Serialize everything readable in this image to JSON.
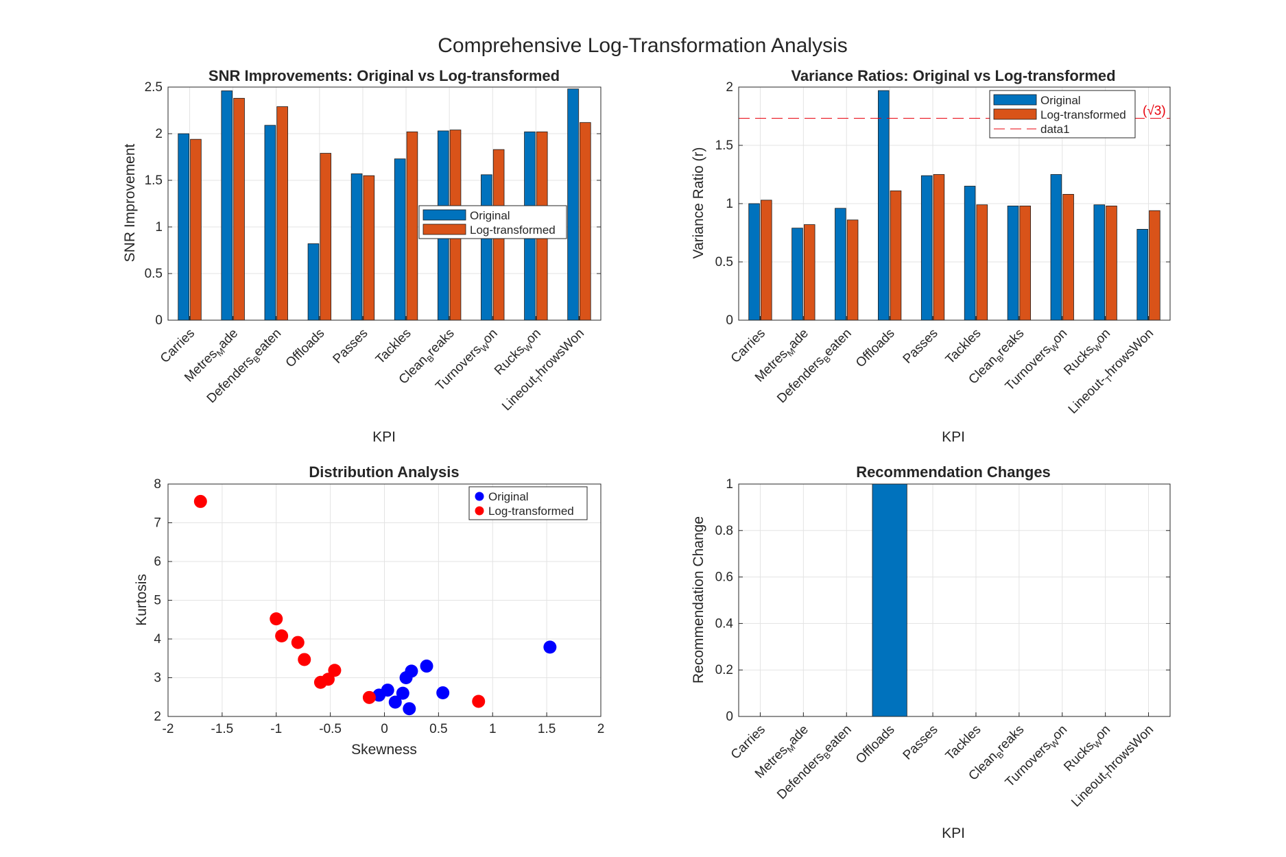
{
  "figure": {
    "title": "Comprehensive Log-Transformation Analysis",
    "colors": {
      "original": "#0072BD",
      "log": "#D95319",
      "scatter_original": "#0000FF",
      "scatter_log": "#FF0000",
      "refline": "#E8000B"
    }
  },
  "chart_data": [
    {
      "type": "bar",
      "title": "SNR Improvements: Original vs Log-transformed",
      "xlabel": "KPI",
      "ylabel": "SNR Improvement",
      "ylim": [
        0,
        2.5
      ],
      "yticks": [
        "0",
        "0.5",
        "1",
        "1.5",
        "2",
        "2.5"
      ],
      "grid": true,
      "legend": "center-right",
      "categories": [
        {
          "base": "Carries",
          "sub": "",
          "rest": ""
        },
        {
          "base": "Metres",
          "sub": "M",
          "rest": "ade"
        },
        {
          "base": "Defenders",
          "sub": "B",
          "rest": "eaten"
        },
        {
          "base": "Offloads",
          "sub": "",
          "rest": ""
        },
        {
          "base": "Passes",
          "sub": "",
          "rest": ""
        },
        {
          "base": "Tackles",
          "sub": "",
          "rest": ""
        },
        {
          "base": "Clean",
          "sub": "B",
          "rest": "reaks"
        },
        {
          "base": "Turnovers",
          "sub": "W",
          "rest": "on"
        },
        {
          "base": "Rucks",
          "sub": "W",
          "rest": "on"
        },
        {
          "base": "Lineout",
          "sub": "T",
          "rest": "hrowsWon"
        }
      ],
      "series": [
        {
          "name": "Original",
          "values": [
            2.0,
            2.46,
            2.09,
            0.82,
            1.57,
            1.73,
            2.03,
            1.56,
            2.02,
            2.48
          ]
        },
        {
          "name": "Log-transformed",
          "values": [
            1.94,
            2.38,
            2.29,
            1.79,
            1.55,
            2.02,
            2.04,
            1.83,
            2.02,
            2.12
          ]
        }
      ]
    },
    {
      "type": "bar",
      "title": "Variance Ratios: Original vs Log-transformed",
      "xlabel": "KPI",
      "ylabel": "Variance Ratio (r)",
      "ylim": [
        0,
        2
      ],
      "yticks": [
        "0",
        "0.5",
        "1",
        "1.5",
        "2"
      ],
      "grid": true,
      "legend": "top-right",
      "categories": [
        {
          "base": "Carries",
          "sub": "",
          "rest": ""
        },
        {
          "base": "Metres",
          "sub": "M",
          "rest": "ade"
        },
        {
          "base": "Defenders",
          "sub": "B",
          "rest": "eaten"
        },
        {
          "base": "Offloads",
          "sub": "",
          "rest": ""
        },
        {
          "base": "Passes",
          "sub": "",
          "rest": ""
        },
        {
          "base": "Tackles",
          "sub": "",
          "rest": ""
        },
        {
          "base": "Clean",
          "sub": "B",
          "rest": "reaks"
        },
        {
          "base": "Turnovers",
          "sub": "W",
          "rest": "on"
        },
        {
          "base": "Rucks",
          "sub": "W",
          "rest": "on"
        },
        {
          "base": "Lineout-",
          "sub": "T",
          "rest": "hrowsWon"
        }
      ],
      "series": [
        {
          "name": "Original",
          "values": [
            1.0,
            0.79,
            0.96,
            1.97,
            1.24,
            1.15,
            0.98,
            1.25,
            0.99,
            0.78
          ]
        },
        {
          "name": "Log-transformed",
          "values": [
            1.03,
            0.82,
            0.86,
            1.11,
            1.25,
            0.99,
            0.98,
            1.08,
            0.98,
            0.94
          ]
        }
      ],
      "reference_line": {
        "name": "data1",
        "value": 1.732,
        "label": "(√3)",
        "style": "dashed"
      }
    },
    {
      "type": "scatter",
      "title": "Distribution Analysis",
      "xlabel": "Skewness",
      "ylabel": "Kurtosis",
      "xlim": [
        -2,
        2
      ],
      "ylim": [
        2,
        8
      ],
      "xticks": [
        "-2",
        "-1.5",
        "-1",
        "-0.5",
        "0",
        "0.5",
        "1",
        "1.5",
        "2"
      ],
      "yticks": [
        "2",
        "3",
        "4",
        "5",
        "6",
        "7",
        "8"
      ],
      "grid": true,
      "legend": "top-right",
      "series": [
        {
          "name": "Original",
          "points": [
            [
              -0.05,
              2.55
            ],
            [
              0.03,
              2.68
            ],
            [
              0.1,
              2.37
            ],
            [
              0.17,
              2.6
            ],
            [
              0.2,
              3.0
            ],
            [
              0.23,
              2.2
            ],
            [
              0.25,
              3.17
            ],
            [
              0.39,
              3.3
            ],
            [
              0.54,
              2.61
            ],
            [
              1.53,
              3.79
            ]
          ]
        },
        {
          "name": "Log-transformed",
          "points": [
            [
              -1.7,
              7.55
            ],
            [
              -1.0,
              4.52
            ],
            [
              -0.95,
              4.08
            ],
            [
              -0.8,
              3.91
            ],
            [
              -0.74,
              3.47
            ],
            [
              -0.59,
              2.88
            ],
            [
              -0.52,
              2.96
            ],
            [
              -0.46,
              3.19
            ],
            [
              -0.14,
              2.49
            ],
            [
              0.87,
              2.39
            ]
          ]
        }
      ]
    },
    {
      "type": "bar",
      "title": "Recommendation Changes",
      "xlabel": "KPI",
      "ylabel": "Recommendation Change",
      "ylim": [
        0,
        1
      ],
      "yticks": [
        "0",
        "0.2",
        "0.4",
        "0.6",
        "0.8",
        "1"
      ],
      "grid": true,
      "categories": [
        {
          "base": "Carries",
          "sub": "",
          "rest": ""
        },
        {
          "base": "Metres",
          "sub": "M",
          "rest": "ade"
        },
        {
          "base": "Defenders",
          "sub": "B",
          "rest": "eaten"
        },
        {
          "base": "Offloads",
          "sub": "",
          "rest": ""
        },
        {
          "base": "Passes",
          "sub": "",
          "rest": ""
        },
        {
          "base": "Tackles",
          "sub": "",
          "rest": ""
        },
        {
          "base": "Clean",
          "sub": "B",
          "rest": "reaks"
        },
        {
          "base": "Turnovers",
          "sub": "W",
          "rest": "on"
        },
        {
          "base": "Rucks",
          "sub": "W",
          "rest": "on"
        },
        {
          "base": "Lineout",
          "sub": "T",
          "rest": "hrowsWon"
        }
      ],
      "values": [
        0,
        0,
        0,
        1,
        0,
        0,
        0,
        0,
        0,
        0
      ]
    }
  ]
}
